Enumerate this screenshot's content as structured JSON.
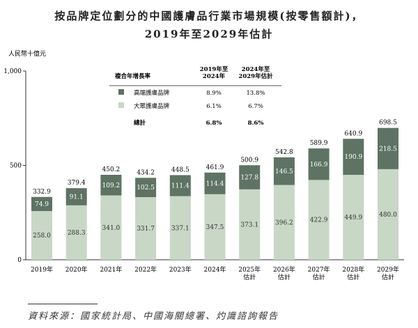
{
  "chart_data": {
    "type": "bar",
    "stacked": true,
    "title": "按品牌定位劃分的中國護膚品行業市場規模(按零售額計)，",
    "subtitle": "2019年至2029年估計",
    "ylabel": "人民幣十億元",
    "ylim": [
      0,
      1000
    ],
    "yticks": [
      "0",
      "500",
      "1,000"
    ],
    "ytick_values": [
      0,
      500,
      1000
    ],
    "categories": [
      [
        "2019年"
      ],
      [
        "2020年"
      ],
      [
        "2021年"
      ],
      [
        "2022年"
      ],
      [
        "2023年"
      ],
      [
        "2024年"
      ],
      [
        "2025年",
        "估計"
      ],
      [
        "2026年",
        "估計"
      ],
      [
        "2027年",
        "估計"
      ],
      [
        "2028年",
        "估計"
      ],
      [
        "2029年",
        "估計"
      ]
    ],
    "series": [
      {
        "name": "大眾護膚品牌",
        "color": "#c8d7c6",
        "values": [
          258.0,
          288.3,
          341.0,
          331.7,
          337.1,
          347.5,
          373.1,
          396.2,
          422.9,
          449.9,
          480.0
        ]
      },
      {
        "name": "高端護膚品牌",
        "color": "#5e7363",
        "values": [
          74.9,
          91.1,
          109.2,
          102.5,
          111.4,
          114.4,
          127.8,
          146.5,
          166.9,
          190.9,
          218.5
        ]
      }
    ],
    "totals": [
      332.9,
      379.4,
      450.2,
      434.2,
      448.5,
      461.9,
      500.9,
      542.8,
      589.9,
      640.9,
      698.5
    ],
    "cagr_table": {
      "header": "複合年增長率",
      "col1": [
        "2019年至",
        "2024年"
      ],
      "col2": [
        "2024年至",
        "2029年估計"
      ],
      "rows": [
        {
          "label": "高端護膚品牌",
          "c1": "8.9%",
          "c2": "13.8%",
          "color": "#5e7363"
        },
        {
          "label": "大眾護膚品牌",
          "c1": "6.1%",
          "c2": "6.7%",
          "color": "#c8d7c6"
        },
        {
          "label": "總計",
          "c1": "6.8%",
          "c2": "8.6%"
        }
      ]
    },
    "grid": false
  },
  "source": "資料來源：國家統計局、中國海關總署、灼識諮詢報告"
}
